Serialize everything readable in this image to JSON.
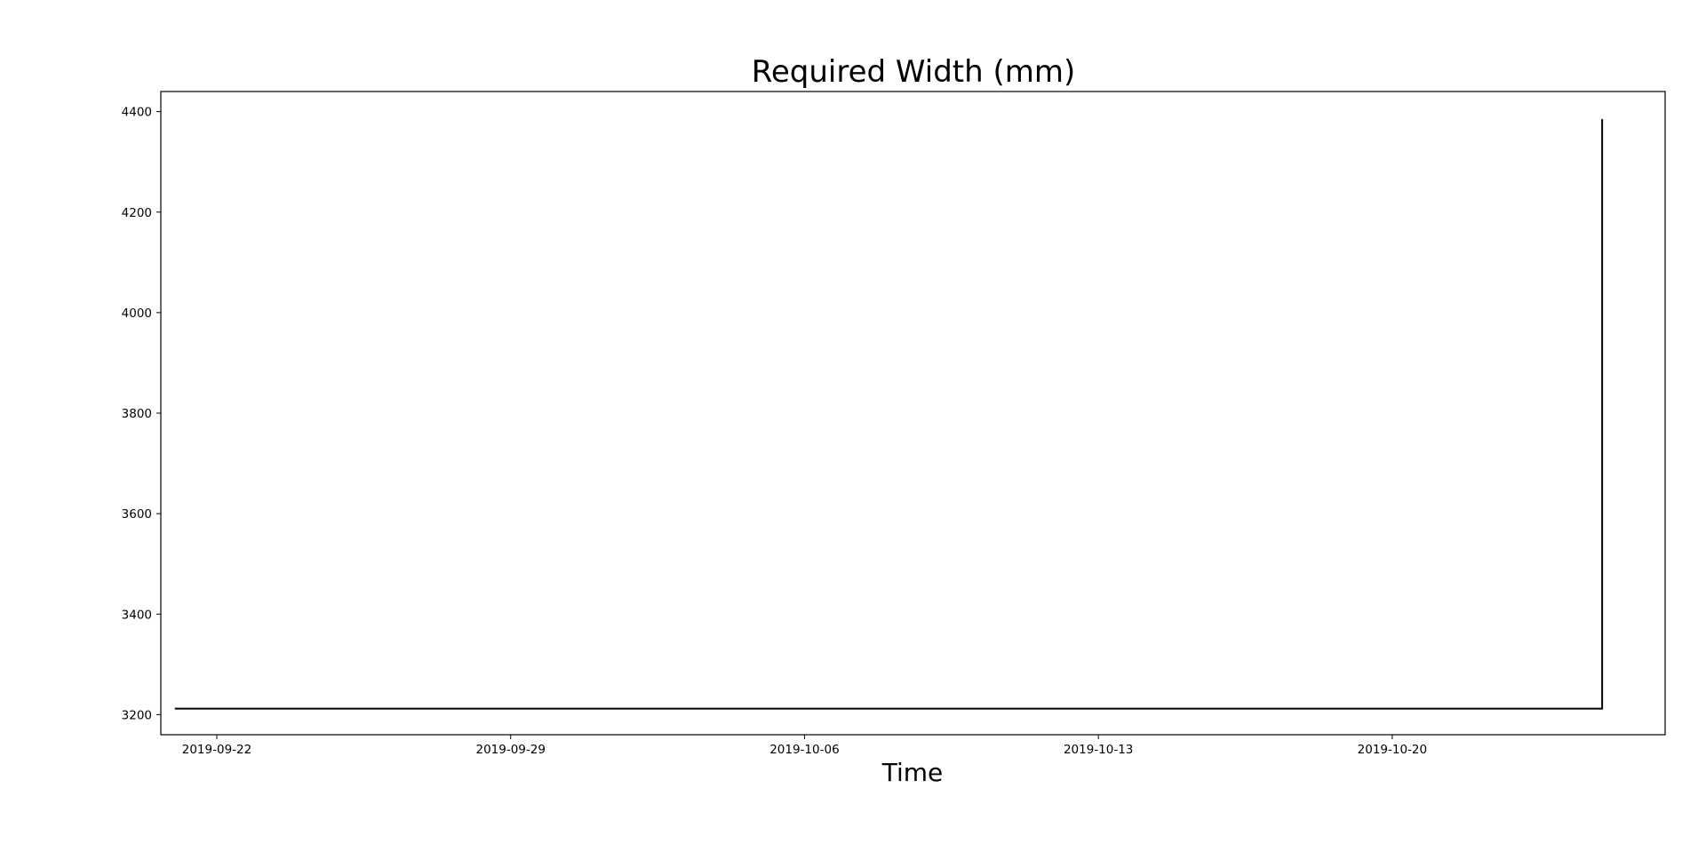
{
  "chart_data": {
    "type": "line",
    "title": "Required Width (mm)",
    "xlabel": "Time",
    "ylabel": "",
    "x_type": "date",
    "xlim": [
      "2019-09-20 16:00",
      "2019-10-26 12:00"
    ],
    "ylim": [
      3160,
      4440
    ],
    "x_ticks": [
      "2019-09-22",
      "2019-09-29",
      "2019-10-06",
      "2019-10-13",
      "2019-10-20"
    ],
    "y_ticks": [
      3200,
      3400,
      3600,
      3800,
      4000,
      4200,
      4400
    ],
    "grid": false,
    "legend": "none",
    "line_color": "#000000",
    "series": [
      {
        "x": [
          "2019-09-21 00:00",
          "2019-10-24 23:00",
          "2019-10-25 00:00",
          "2019-10-25 00:00"
        ],
        "y": [
          3212,
          3212,
          3212,
          4385
        ]
      }
    ]
  }
}
